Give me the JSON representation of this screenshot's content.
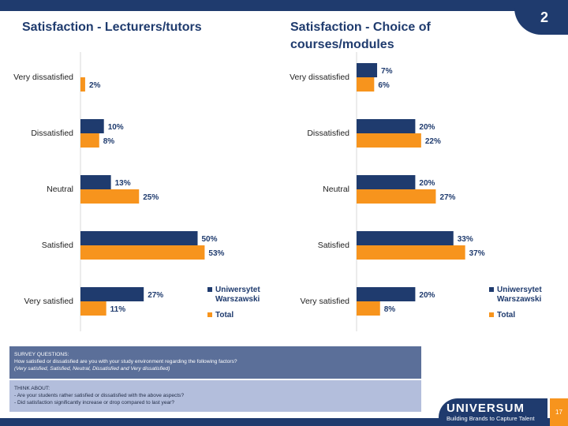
{
  "slide": {
    "number": "2",
    "page_number": "17"
  },
  "colors": {
    "primary": "#1f3b6e",
    "series_uw": "#1f3b6e",
    "series_total": "#f7941d",
    "survey_box": "#5b6f99",
    "think_box": "#b3bedc"
  },
  "chart_data": [
    {
      "type": "bar",
      "orientation": "horizontal",
      "title": "Satisfaction - Lecturers/tutors",
      "categories": [
        "Very dissatisfied",
        "Dissatisfied",
        "Neutral",
        "Satisfied",
        "Very satisfied"
      ],
      "series": [
        {
          "name": "Uniwersytet Warszawski",
          "values": [
            0,
            10,
            13,
            50,
            27
          ]
        },
        {
          "name": "Total",
          "values": [
            2,
            8,
            25,
            53,
            11
          ]
        }
      ],
      "value_labels": [
        [
          "",
          "10%",
          "13%",
          "50%",
          "27%"
        ],
        [
          "2%",
          "8%",
          "25%",
          "53%",
          "11%"
        ]
      ],
      "legend": [
        "Uniwersytet",
        "Warszawski",
        "Total"
      ],
      "xlim": [
        0,
        60
      ],
      "legend_position": "bottom-right"
    },
    {
      "type": "bar",
      "orientation": "horizontal",
      "title": "Satisfaction - Choice of courses/modules",
      "categories": [
        "Very dissatisfied",
        "Dissatisfied",
        "Neutral",
        "Satisfied",
        "Very satisfied"
      ],
      "series": [
        {
          "name": "Uniwersytet Warszawski",
          "values": [
            7,
            20,
            20,
            33,
            20
          ]
        },
        {
          "name": "Total",
          "values": [
            6,
            22,
            27,
            37,
            8
          ]
        }
      ],
      "value_labels": [
        [
          "7%",
          "20%",
          "20%",
          "33%",
          "20%"
        ],
        [
          "6%",
          "22%",
          "27%",
          "37%",
          "8%"
        ]
      ],
      "legend": [
        "Uniwersytet",
        "Warszawski",
        "Total"
      ],
      "xlim": [
        0,
        45
      ],
      "legend_position": "bottom-right"
    }
  ],
  "titles": {
    "left": "Satisfaction - Lecturers/tutors",
    "right_line1": "Satisfaction - Choice of",
    "right_line2": "courses/modules"
  },
  "survey": {
    "heading": "SURVEY QUESTIONS:",
    "question": "How satisfied or dissatisfied are you with your study environment regarding the following factors?",
    "options": "(Very satisfied, Satisfied, Neutral, Dissatisfied and Very dissatisfied)"
  },
  "think_about": {
    "heading": "THINK ABOUT:",
    "items": [
      "- Are your students rather satisfied or dissatisfied with the above aspects?",
      "- Did satisfaction significantly increase or drop compared to last year?"
    ]
  },
  "logo": {
    "name": "UNIVERSUM",
    "tagline": "Building Brands to Capture Talent"
  }
}
